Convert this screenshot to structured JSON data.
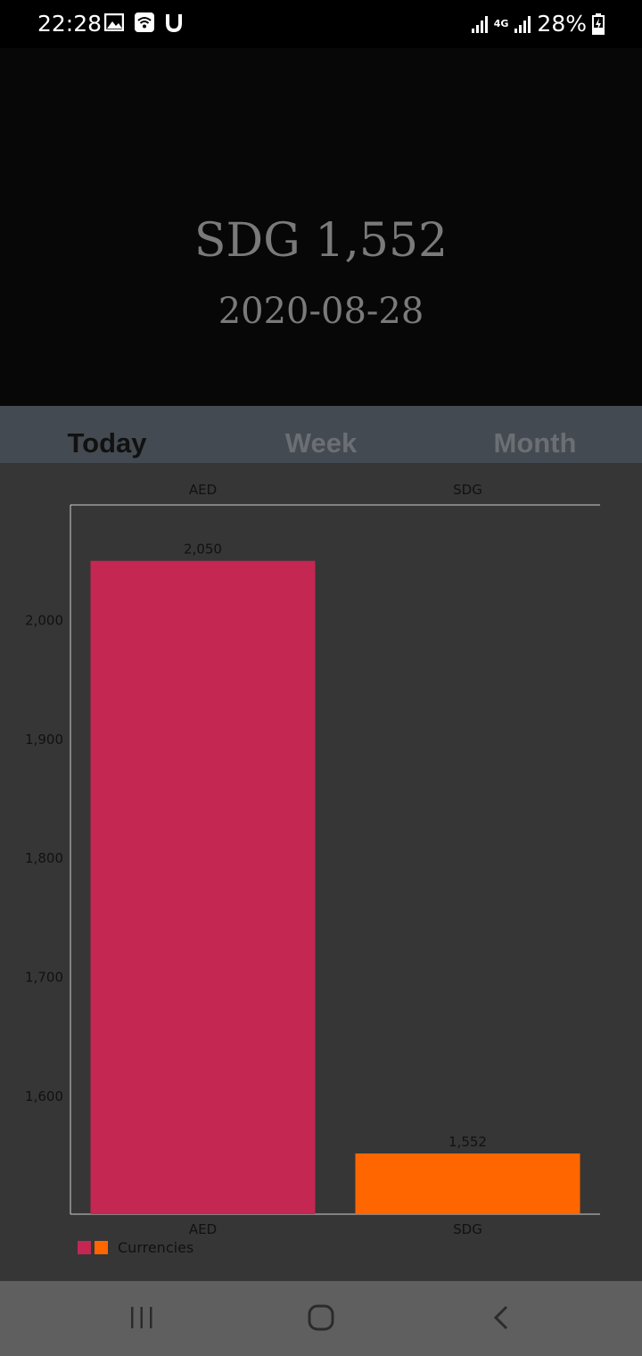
{
  "status_bar": {
    "time": "22:28",
    "network": "4G",
    "battery": "28%",
    "icons": [
      "image-icon",
      "wifi-icon",
      "u-icon",
      "signal-icon",
      "signal-icon",
      "battery-charging-icon"
    ]
  },
  "header": {
    "amount": "SDG 1,552",
    "date": "2020-08-28"
  },
  "tabs": [
    {
      "label": "Today",
      "active": true
    },
    {
      "label": "Week",
      "active": false
    },
    {
      "label": "Month",
      "active": false
    }
  ],
  "chart_data": {
    "type": "bar",
    "categories": [
      "AED",
      "SDG"
    ],
    "series": [
      {
        "name": "Currencies",
        "values": [
          2050,
          1552
        ],
        "colors": [
          "#c42752",
          "#ff6600"
        ]
      }
    ],
    "data_labels": [
      "2,050",
      "1,552"
    ],
    "yticks": [
      1600,
      1700,
      1800,
      1900,
      2000
    ],
    "ytick_labels": [
      "1,600",
      "1,700",
      "1,800",
      "1,900",
      "2,000"
    ],
    "ylim": [
      1501,
      2097
    ],
    "grid": false,
    "legend": "bottom-left",
    "title": "",
    "xlabel": "",
    "ylabel": ""
  },
  "colors": {
    "header_bg": "#070707",
    "tab_bar_bg": "#444a51",
    "chart_bg": "#363636",
    "nav_bg": "#5f5f5f"
  },
  "nav": {
    "icons": [
      "recent-apps-icon",
      "home-icon",
      "back-icon"
    ]
  }
}
